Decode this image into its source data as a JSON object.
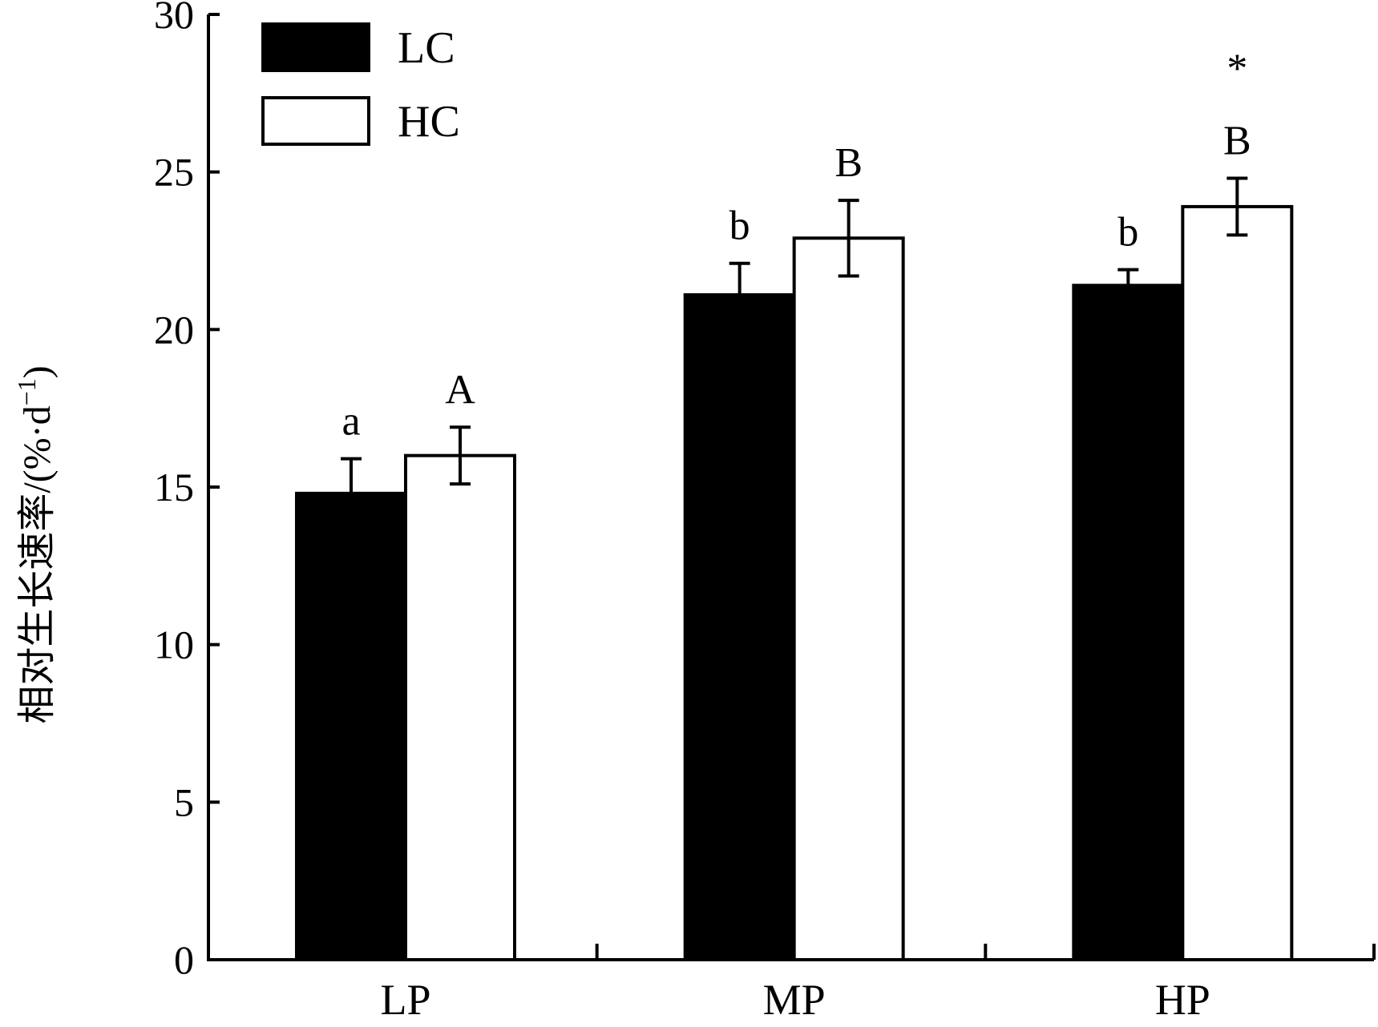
{
  "chart_data": {
    "type": "bar",
    "title": "",
    "xlabel": "",
    "ylabel": "相对生长速率/(%·d",
    "ylabel_superscript": "−1",
    "ylabel_close": ")",
    "categories": [
      "LP",
      "MP",
      "HP"
    ],
    "ylim": [
      0,
      30
    ],
    "yticks": [
      0,
      5,
      10,
      15,
      20,
      25,
      30
    ],
    "grid": false,
    "legend_placement": "top-left",
    "series": [
      {
        "name": "LC",
        "color": "#000000",
        "values": [
          14.8,
          21.1,
          21.4
        ],
        "errors": [
          1.1,
          1.0,
          0.5
        ],
        "sig_letters": [
          "a",
          "b",
          "b"
        ]
      },
      {
        "name": "HC",
        "color": "#ffffff",
        "values": [
          16.0,
          22.9,
          23.9
        ],
        "errors": [
          0.9,
          1.2,
          0.9
        ],
        "sig_letters": [
          "A",
          "B",
          "B"
        ]
      }
    ],
    "annotations": [
      {
        "category": "HP",
        "series": "HC",
        "text": "*"
      }
    ]
  }
}
